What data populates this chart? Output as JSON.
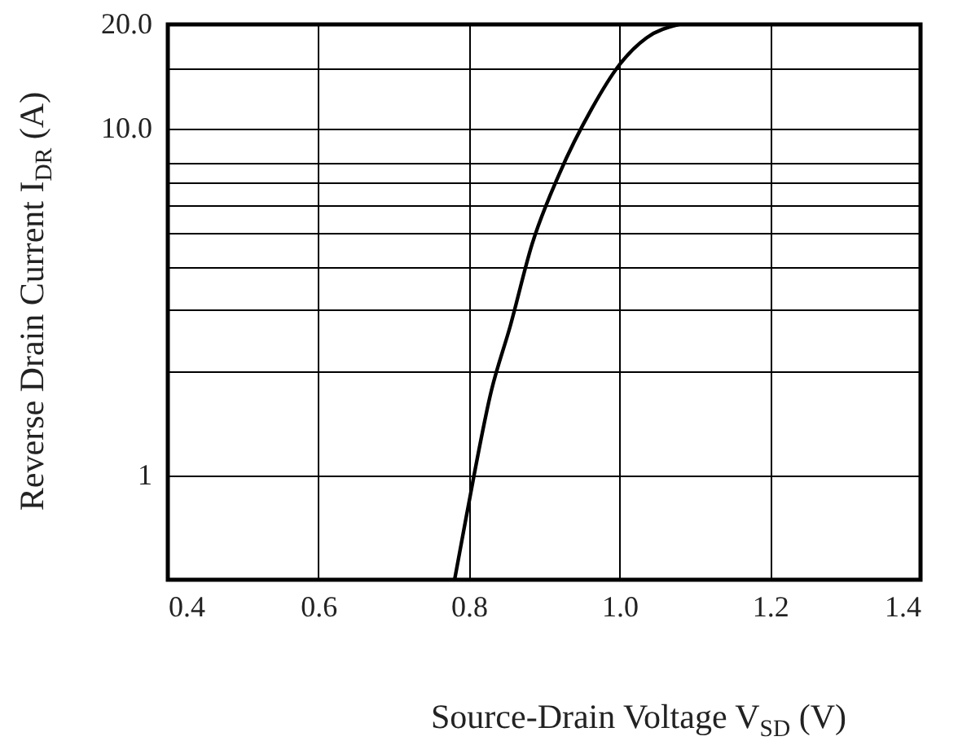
{
  "chart_data": {
    "type": "line",
    "xlabel": "Source-Drain Voltage V$_{SD}$ (V)",
    "ylabel": "Reverse Drain Current I$_{DR}$ (A)",
    "x": [
      0.781,
      0.797,
      0.83,
      0.855,
      0.884,
      0.92,
      0.963,
      1.0,
      1.036,
      1.079
    ],
    "series": [
      {
        "color": "#000000",
        "values": [
          0.5,
          0.77,
          1.76,
          2.7,
          4.65,
          7.4,
          11.4,
          15.3,
          18.3,
          20
        ]
      }
    ],
    "xlim": [
      0.4,
      1.4
    ],
    "xticks": [
      0.4,
      0.6,
      0.8,
      {
        "value": 1,
        "label": "1.0"
      },
      1.2,
      1.4
    ],
    "ylim": [
      0.5,
      20
    ],
    "yticks": [
      1,
      {
        "value": 2,
        "label": null
      },
      {
        "value": 3,
        "label": null
      },
      {
        "value": 4,
        "label": null
      },
      {
        "value": 5,
        "label": null
      },
      {
        "value": 6,
        "label": null
      },
      {
        "value": 7,
        "label": null
      },
      {
        "value": 8,
        "label": null
      },
      {
        "value": 10,
        "label": "10.0"
      },
      {
        "value": 15,
        "label": null
      },
      {
        "value": 20,
        "label": "20.0"
      }
    ],
    "log": "y",
    "grid": true,
    "line_style": "solid"
  }
}
